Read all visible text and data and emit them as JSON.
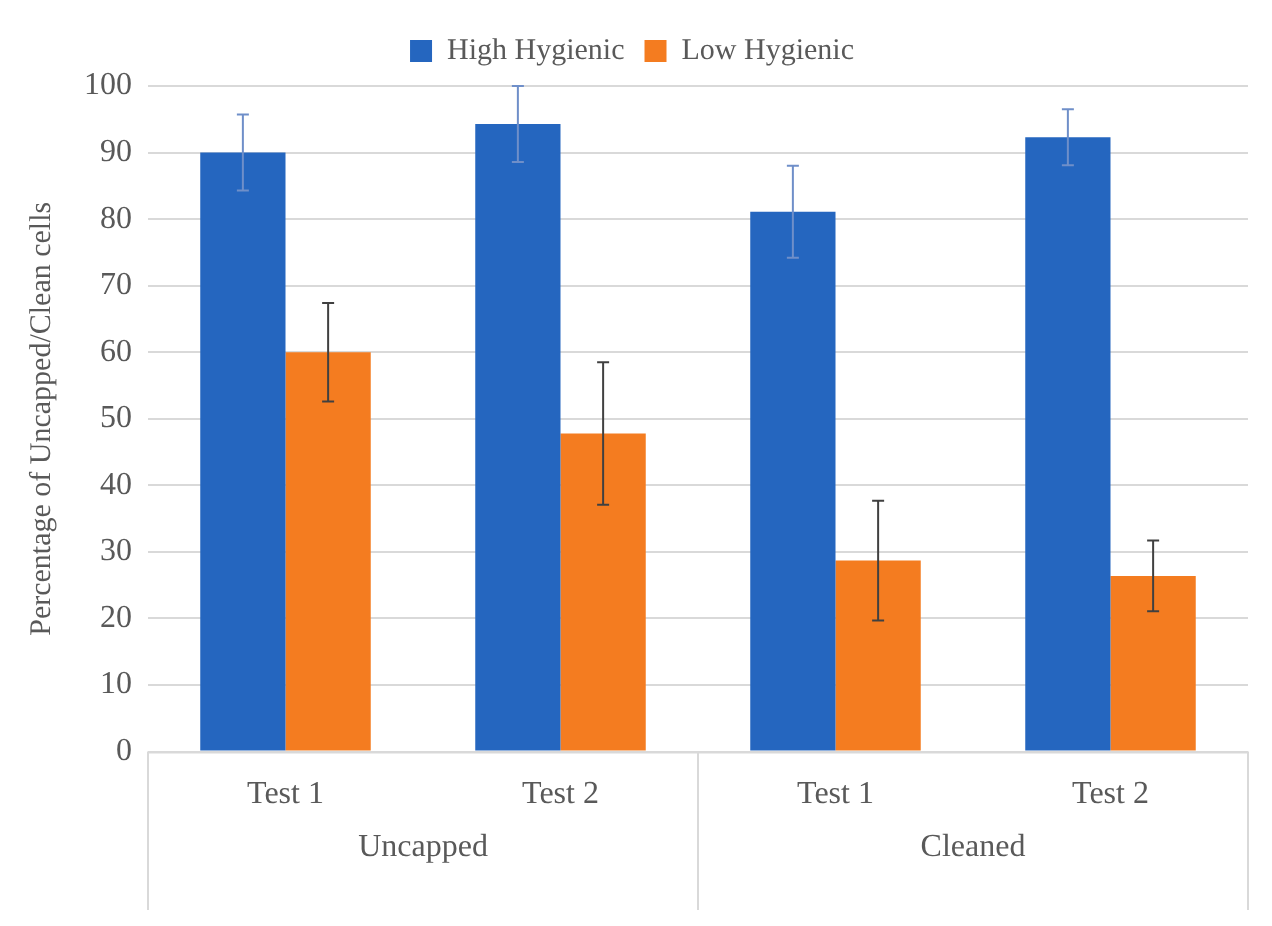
{
  "chart_data": {
    "type": "bar",
    "ylabel": "Percentage of Uncapped/Clean cells",
    "categories": [
      "Test 1",
      "Test 2",
      "Test 1",
      "Test 2"
    ],
    "series": [
      {
        "name": "High Hygienic",
        "color": "#2566bf",
        "values": [
          90,
          94.3,
          81.1,
          92.3
        ],
        "errors": [
          5.7,
          5.7,
          6.9,
          4.2
        ]
      },
      {
        "name": "Low Hygienic",
        "color": "#f47c20",
        "values": [
          60,
          47.8,
          28.7,
          26.4
        ],
        "errors": [
          7.4,
          10.7,
          9,
          5.3
        ]
      }
    ],
    "annotations": [
      "Uncapped",
      "Cleaned"
    ],
    "ylim": [
      0,
      100
    ],
    "yticks": [
      0,
      10,
      20,
      30,
      40,
      50,
      60,
      70,
      80,
      90,
      100
    ],
    "grid": "y",
    "legend": "top"
  }
}
